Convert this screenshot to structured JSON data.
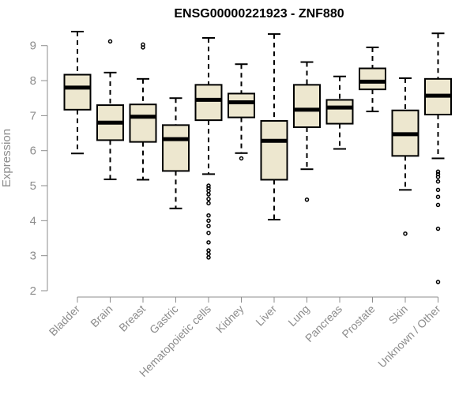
{
  "chart_data": {
    "type": "boxplot",
    "title": "ENSG00000221923 - ZNF880",
    "xlabel": "",
    "ylabel": "Expression",
    "ylim": [
      2,
      9.4
    ],
    "yticks": [
      2,
      3,
      4,
      5,
      6,
      7,
      8,
      9
    ],
    "grid": false,
    "box_fill": "#ede7cf",
    "categories": [
      "Bladder",
      "Brain",
      "Breast",
      "Gastric",
      "Hematopoietic cells",
      "Kidney",
      "Liver",
      "Lung",
      "Pancreas",
      "Prostate",
      "Skin",
      "Unknown / Other"
    ],
    "boxes": [
      {
        "whisker_low": 5.92,
        "q1": 7.17,
        "median": 7.8,
        "q3": 8.17,
        "whisker_high": 9.4,
        "outliers": []
      },
      {
        "whisker_low": 5.18,
        "q1": 6.3,
        "median": 6.8,
        "q3": 7.3,
        "whisker_high": 8.23,
        "outliers": [
          9.12
        ]
      },
      {
        "whisker_low": 5.17,
        "q1": 6.25,
        "median": 6.97,
        "q3": 7.32,
        "whisker_high": 8.05,
        "outliers": [
          8.95,
          9.03
        ]
      },
      {
        "whisker_low": 4.35,
        "q1": 5.42,
        "median": 6.33,
        "q3": 6.73,
        "whisker_high": 7.5,
        "outliers": []
      },
      {
        "whisker_low": 5.33,
        "q1": 6.87,
        "median": 7.45,
        "q3": 7.88,
        "whisker_high": 9.22,
        "outliers": [
          5.0,
          4.93,
          4.85,
          4.75,
          4.62,
          4.5,
          4.15,
          4.0,
          3.85,
          3.65,
          3.38,
          3.15,
          3.05,
          2.95
        ]
      },
      {
        "whisker_low": 5.93,
        "q1": 6.95,
        "median": 7.38,
        "q3": 7.63,
        "whisker_high": 8.47,
        "outliers": [
          5.78
        ]
      },
      {
        "whisker_low": 4.03,
        "q1": 5.17,
        "median": 6.28,
        "q3": 6.85,
        "whisker_high": 9.33,
        "outliers": []
      },
      {
        "whisker_low": 5.47,
        "q1": 6.67,
        "median": 7.17,
        "q3": 7.88,
        "whisker_high": 8.53,
        "outliers": [
          4.6
        ]
      },
      {
        "whisker_low": 6.05,
        "q1": 6.77,
        "median": 7.23,
        "q3": 7.45,
        "whisker_high": 8.12,
        "outliers": []
      },
      {
        "whisker_low": 7.12,
        "q1": 7.75,
        "median": 7.97,
        "q3": 8.35,
        "whisker_high": 8.95,
        "outliers": []
      },
      {
        "whisker_low": 4.88,
        "q1": 5.85,
        "median": 6.47,
        "q3": 7.15,
        "whisker_high": 8.07,
        "outliers": [
          3.63
        ]
      },
      {
        "whisker_low": 5.78,
        "q1": 7.03,
        "median": 7.57,
        "q3": 8.05,
        "whisker_high": 9.35,
        "outliers": [
          5.4,
          5.33,
          5.25,
          5.12,
          4.88,
          4.68,
          4.45,
          3.77,
          2.25
        ]
      }
    ]
  }
}
